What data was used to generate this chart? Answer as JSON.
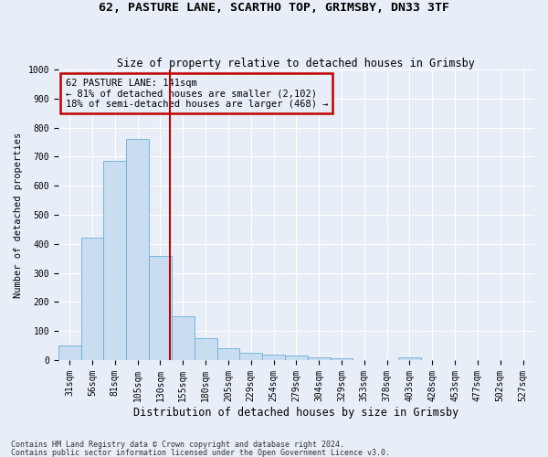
{
  "title1": "62, PASTURE LANE, SCARTHO TOP, GRIMSBY, DN33 3TF",
  "title2": "Size of property relative to detached houses in Grimsby",
  "xlabel": "Distribution of detached houses by size in Grimsby",
  "ylabel": "Number of detached properties",
  "footnote1": "Contains HM Land Registry data © Crown copyright and database right 2024.",
  "footnote2": "Contains public sector information licensed under the Open Government Licence v3.0.",
  "categories": [
    "31sqm",
    "56sqm",
    "81sqm",
    "105sqm",
    "130sqm",
    "155sqm",
    "180sqm",
    "205sqm",
    "229sqm",
    "254sqm",
    "279sqm",
    "304sqm",
    "329sqm",
    "353sqm",
    "378sqm",
    "403sqm",
    "428sqm",
    "453sqm",
    "477sqm",
    "502sqm",
    "527sqm"
  ],
  "values": [
    50,
    420,
    685,
    760,
    360,
    150,
    75,
    40,
    25,
    20,
    15,
    10,
    5,
    0,
    0,
    10,
    0,
    0,
    0,
    0,
    0
  ],
  "bar_color": "#c9ddf0",
  "bar_edge_color": "#6baed6",
  "vline_color": "#c00000",
  "vline_x_index": 4.44,
  "annotation_text": "62 PASTURE LANE: 141sqm\n← 81% of detached houses are smaller (2,102)\n18% of semi-detached houses are larger (468) →",
  "annotation_box_color": "#c00000",
  "ylim": [
    0,
    1000
  ],
  "yticks": [
    0,
    100,
    200,
    300,
    400,
    500,
    600,
    700,
    800,
    900,
    1000
  ],
  "background_color": "#e8eef7",
  "grid_color": "#ffffff",
  "title1_fontsize": 9.5,
  "title2_fontsize": 8.5,
  "xlabel_fontsize": 8.5,
  "ylabel_fontsize": 7.5,
  "tick_fontsize": 7,
  "annotation_fontsize": 7.5,
  "footnote_fontsize": 6
}
